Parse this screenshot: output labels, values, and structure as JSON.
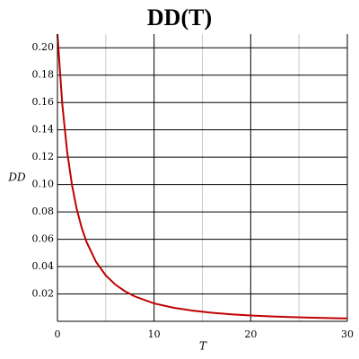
{
  "chart_data": {
    "type": "line",
    "title": "DD(T)",
    "x_label": "T",
    "y_label": "DD",
    "x": [
      0,
      0.5,
      1,
      1.5,
      2,
      2.5,
      3,
      4,
      5,
      6,
      7,
      8,
      10,
      12,
      14,
      16,
      18,
      20,
      22,
      24,
      26,
      28,
      30
    ],
    "values": [
      0.21,
      0.1588,
      0.1243,
      0.0999,
      0.082,
      0.0686,
      0.0582,
      0.0434,
      0.0336,
      0.0268,
      0.0219,
      0.0182,
      0.0131,
      0.0099,
      0.0078,
      0.0062,
      0.0051,
      0.0043,
      0.0036,
      0.0031,
      0.0027,
      0.0024,
      0.0021
    ],
    "color": "#c00000",
    "xlim": [
      0,
      30
    ],
    "xticks": [
      0,
      10,
      20,
      30
    ],
    "x_minor_grid": [
      5,
      15,
      25
    ],
    "ylim": [
      0,
      0.21
    ],
    "yticks": [
      {
        "value": 0.02,
        "label": "0.02"
      },
      {
        "value": 0.04,
        "label": "0.04"
      },
      {
        "value": 0.06,
        "label": "0.06"
      },
      {
        "value": 0.08,
        "label": "0.08"
      },
      {
        "value": 0.1,
        "label": "0.10"
      },
      {
        "value": 0.12,
        "label": "0.12"
      },
      {
        "value": 0.14,
        "label": "0.14"
      },
      {
        "value": 0.16,
        "label": "0.16"
      },
      {
        "value": 0.18,
        "label": "0.18"
      },
      {
        "value": 0.2,
        "label": "0.20"
      }
    ],
    "grid": true
  }
}
